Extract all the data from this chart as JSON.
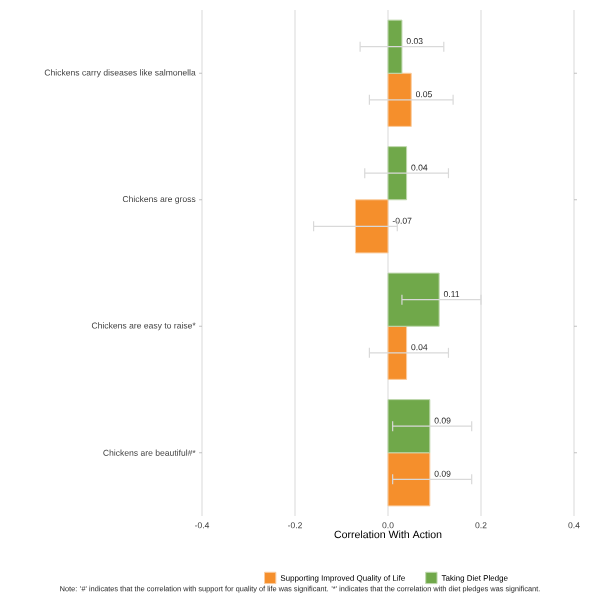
{
  "chart_data": {
    "type": "bar",
    "orientation": "horizontal",
    "categories": [
      "Chickens carry diseases like salmonella",
      "Chickens are gross",
      "Chickens are easy to raise*",
      "Chickens are beautiful#*"
    ],
    "series": [
      {
        "name": "Supporting Improved Quality of Life",
        "color": "#f58f2c",
        "values": [
          0.05,
          -0.07,
          0.04,
          0.09
        ],
        "errors": [
          [
            -0.04,
            0.14
          ],
          [
            -0.16,
            0.02
          ],
          [
            -0.04,
            0.13
          ],
          [
            0.01,
            0.18
          ]
        ],
        "value_labels": [
          "0.05",
          "-0.07",
          "0.04",
          "0.09"
        ]
      },
      {
        "name": "Taking Diet Pledge",
        "color": "#70a84a",
        "values": [
          0.03,
          0.04,
          0.11,
          0.09
        ],
        "errors": [
          [
            -0.06,
            0.12
          ],
          [
            -0.05,
            0.13
          ],
          [
            0.03,
            0.2
          ],
          [
            0.01,
            0.18
          ]
        ],
        "value_labels": [
          "0.03",
          "0.04",
          "0.11",
          "0.09"
        ]
      }
    ],
    "xlabel": "Correlation With Action",
    "xlim": [
      -0.4,
      0.4
    ],
    "xticks": [
      -0.4,
      -0.2,
      {
        "value": 0,
        "label": "0.0"
      },
      0.2,
      0.4
    ],
    "grid": "x",
    "legend": "bottom",
    "annotations": [
      "Note: '#' indicates that the correlation with support for quality of life was significant. '*' indicates that the correlation with diet pledges was significant."
    ]
  }
}
